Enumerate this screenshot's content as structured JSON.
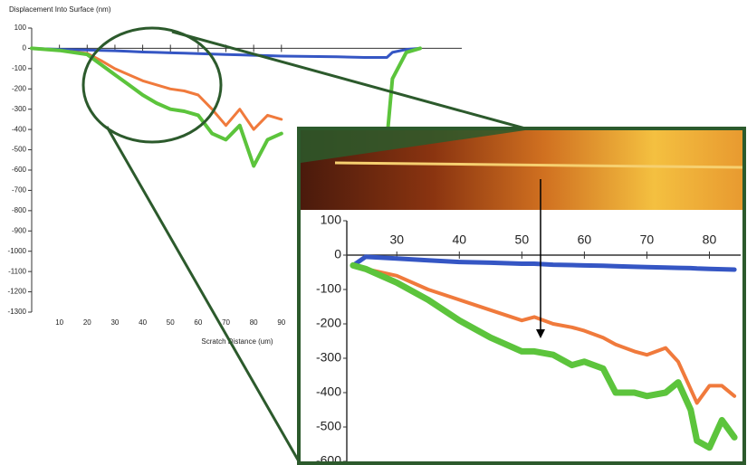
{
  "chart_data": [
    {
      "type": "line",
      "title": "Displacement Into Surface (nm)",
      "x_label": "Scratch Distance (um)",
      "xlim": [
        0,
        155
      ],
      "ylim": [
        -1300,
        100
      ],
      "xticks": [
        10,
        20,
        30,
        40,
        50,
        60,
        70,
        80,
        90
      ],
      "yticks": [
        100,
        0,
        -100,
        -200,
        -300,
        -400,
        -500,
        -600,
        -700,
        -800,
        -900,
        -1000,
        -1100,
        -1200,
        -1300
      ],
      "x": [
        0,
        10,
        20,
        25,
        30,
        35,
        40,
        45,
        50,
        55,
        60,
        65,
        70,
        75,
        80,
        85,
        90,
        100,
        110,
        120,
        128,
        130,
        135,
        140
      ],
      "series": [
        {
          "name": "blue",
          "color": "#3556c4",
          "values": [
            0,
            -5,
            -8,
            -10,
            -12,
            -15,
            -18,
            -20,
            -22,
            -24,
            -26,
            -28,
            -30,
            -32,
            -34,
            -36,
            -38,
            -40,
            -42,
            -45,
            -45,
            -20,
            -5,
            0
          ]
        },
        {
          "name": "orange",
          "color": "#f07a3c",
          "values": [
            0,
            -10,
            -25,
            -60,
            -100,
            -130,
            -160,
            -180,
            -200,
            -210,
            -230,
            -300,
            -380,
            -300,
            -400,
            -330,
            -350,
            null,
            null,
            null,
            null,
            null,
            null,
            null
          ]
        },
        {
          "name": "green",
          "color": "#5cc43c",
          "values": [
            0,
            -10,
            -30,
            -80,
            -130,
            -180,
            -230,
            -270,
            -300,
            -310,
            -330,
            -420,
            -450,
            -380,
            -580,
            -450,
            -420,
            null,
            null,
            null,
            -450,
            -150,
            -20,
            0
          ]
        }
      ]
    },
    {
      "type": "line",
      "xlim": [
        22,
        85
      ],
      "ylim": [
        -600,
        100
      ],
      "xticks": [
        30,
        40,
        50,
        60,
        70,
        80
      ],
      "yticks": [
        100,
        0,
        -100,
        -200,
        -300,
        -400,
        -500,
        -600
      ],
      "x": [
        23,
        25,
        30,
        35,
        40,
        45,
        50,
        52,
        55,
        58,
        60,
        63,
        65,
        68,
        70,
        73,
        75,
        77,
        78,
        80,
        82,
        84
      ],
      "series": [
        {
          "name": "blue",
          "color": "#3556c4",
          "values": [
            -30,
            -5,
            -10,
            -15,
            -20,
            -22,
            -25,
            -25,
            -28,
            -29,
            -30,
            -31,
            -32,
            -34,
            -35,
            -36,
            -37,
            -38,
            -39,
            -40,
            -41,
            -42
          ]
        },
        {
          "name": "orange",
          "color": "#f07a3c",
          "values": [
            -30,
            -40,
            -60,
            -100,
            -130,
            -160,
            -190,
            -180,
            -200,
            -210,
            -220,
            -240,
            -260,
            -280,
            -290,
            -270,
            -310,
            -390,
            -430,
            -380,
            -380,
            -410
          ]
        },
        {
          "name": "green",
          "color": "#5cc43c",
          "values": [
            -30,
            -40,
            -80,
            -130,
            -190,
            -240,
            -280,
            -280,
            -290,
            -320,
            -310,
            -330,
            -400,
            -400,
            -410,
            -400,
            -370,
            -450,
            -540,
            -560,
            -480,
            -530
          ]
        }
      ]
    }
  ]
}
